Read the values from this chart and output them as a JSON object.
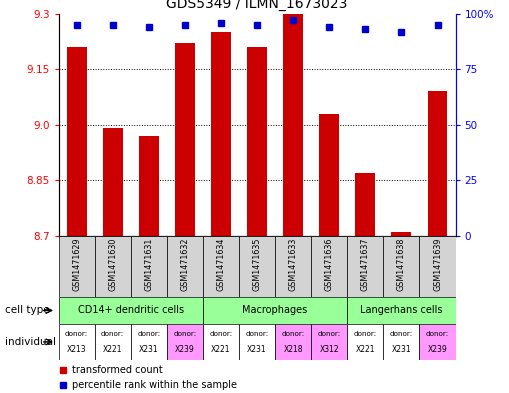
{
  "title": "GDS5349 / ILMN_1673023",
  "samples": [
    "GSM1471629",
    "GSM1471630",
    "GSM1471631",
    "GSM1471632",
    "GSM1471634",
    "GSM1471635",
    "GSM1471633",
    "GSM1471636",
    "GSM1471637",
    "GSM1471638",
    "GSM1471639"
  ],
  "bar_values": [
    9.21,
    8.99,
    8.97,
    9.22,
    9.25,
    9.21,
    9.3,
    9.03,
    8.87,
    8.71,
    9.09
  ],
  "percentile_values": [
    95,
    95,
    94,
    95,
    96,
    95,
    97,
    94,
    93,
    92,
    95
  ],
  "bar_color": "#cc0000",
  "dot_color": "#0000cc",
  "ylim_left": [
    8.7,
    9.3
  ],
  "ylim_right": [
    0,
    100
  ],
  "yticks_left": [
    8.7,
    8.85,
    9.0,
    9.15,
    9.3
  ],
  "yticks_right": [
    0,
    25,
    50,
    75,
    100
  ],
  "grid_values": [
    8.85,
    9.0,
    9.15
  ],
  "cell_groups": [
    {
      "label": "CD14+ dendritic cells",
      "cols": [
        0,
        1,
        2,
        3
      ],
      "color": "#99ff99"
    },
    {
      "label": "Macrophages",
      "cols": [
        4,
        5,
        6,
        7
      ],
      "color": "#99ff99"
    },
    {
      "label": "Langerhans cells",
      "cols": [
        8,
        9,
        10
      ],
      "color": "#99ff99"
    }
  ],
  "individuals": [
    "X213",
    "X221",
    "X231",
    "X239",
    "X221",
    "X231",
    "X218",
    "X312",
    "X221",
    "X231",
    "X239"
  ],
  "individual_colors": [
    "#ffffff",
    "#ffffff",
    "#ffffff",
    "#ff99ff",
    "#ffffff",
    "#ffffff",
    "#ff99ff",
    "#ff99ff",
    "#ffffff",
    "#ffffff",
    "#ff99ff"
  ],
  "bar_width": 0.55,
  "sample_bg_color": "#d3d3d3",
  "border_color": "#000000"
}
